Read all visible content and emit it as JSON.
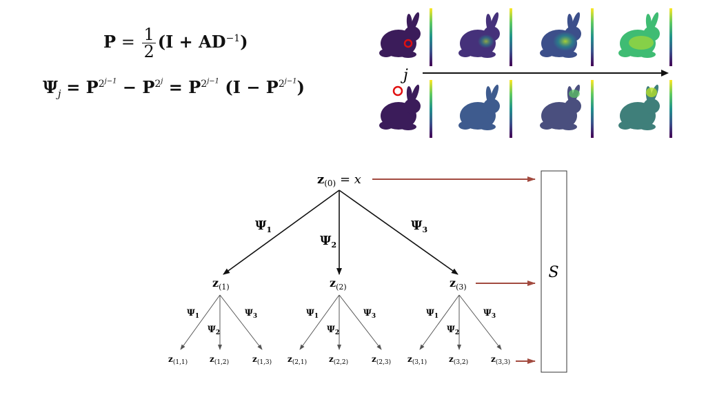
{
  "equations": {
    "p_lhs": "P",
    "p_eq": "=",
    "p_num": "1",
    "p_den": "2",
    "p_rhs": "(I + AD",
    "p_rhs_sup": "−1",
    "p_rhs_close": ")",
    "psi_lhs": "Ψ",
    "psi_sub": "j",
    "psi_rhs_1": "= P",
    "psi_sup_1": "2",
    "psi_sup_1b": "j−1",
    "psi_rhs_2": " − P",
    "psi_sup_2": "2",
    "psi_sup_2b": "j",
    "psi_rhs_3": " = P",
    "psi_sup_3": "2",
    "psi_sup_3b": "j−1",
    "psi_rhs_4": " (I − P",
    "psi_sup_4": "2",
    "psi_sup_4b": "j−1",
    "psi_rhs_5": ")"
  },
  "bunny_figure": {
    "axis_label": "j"
  },
  "tree": {
    "root_label": "z",
    "root_sub": "(0)",
    "root_rhs": " = x",
    "s_label": "S",
    "level1_edges": [
      "Ψ1",
      "Ψ2",
      "Ψ3"
    ],
    "level1_nodes": [
      {
        "label": "z",
        "sub": "(1)"
      },
      {
        "label": "z",
        "sub": "(2)"
      },
      {
        "label": "z",
        "sub": "(3)"
      }
    ],
    "level2_edges": [
      "Ψ1",
      "Ψ2",
      "Ψ3"
    ],
    "level2_nodes": [
      {
        "label": "z",
        "sub": "(1,1)"
      },
      {
        "label": "z",
        "sub": "(1,2)"
      },
      {
        "label": "z",
        "sub": "(1,3)"
      },
      {
        "label": "z",
        "sub": "(2,1)"
      },
      {
        "label": "z",
        "sub": "(2,2)"
      },
      {
        "label": "z",
        "sub": "(2,3)"
      },
      {
        "label": "z",
        "sub": "(3,1)"
      },
      {
        "label": "z",
        "sub": "(3,2)"
      },
      {
        "label": "z",
        "sub": "(3,3)"
      }
    ],
    "edge_sym": "Ψ",
    "edge_subs": [
      "1",
      "2",
      "3"
    ]
  },
  "colors": {
    "arrow_dark": "#111111",
    "arrow_red": "#a24a3f",
    "bunny_purple": "#3b1c5a",
    "viridis_yellow": "#f5e51f",
    "marker_red": "#e01010"
  }
}
